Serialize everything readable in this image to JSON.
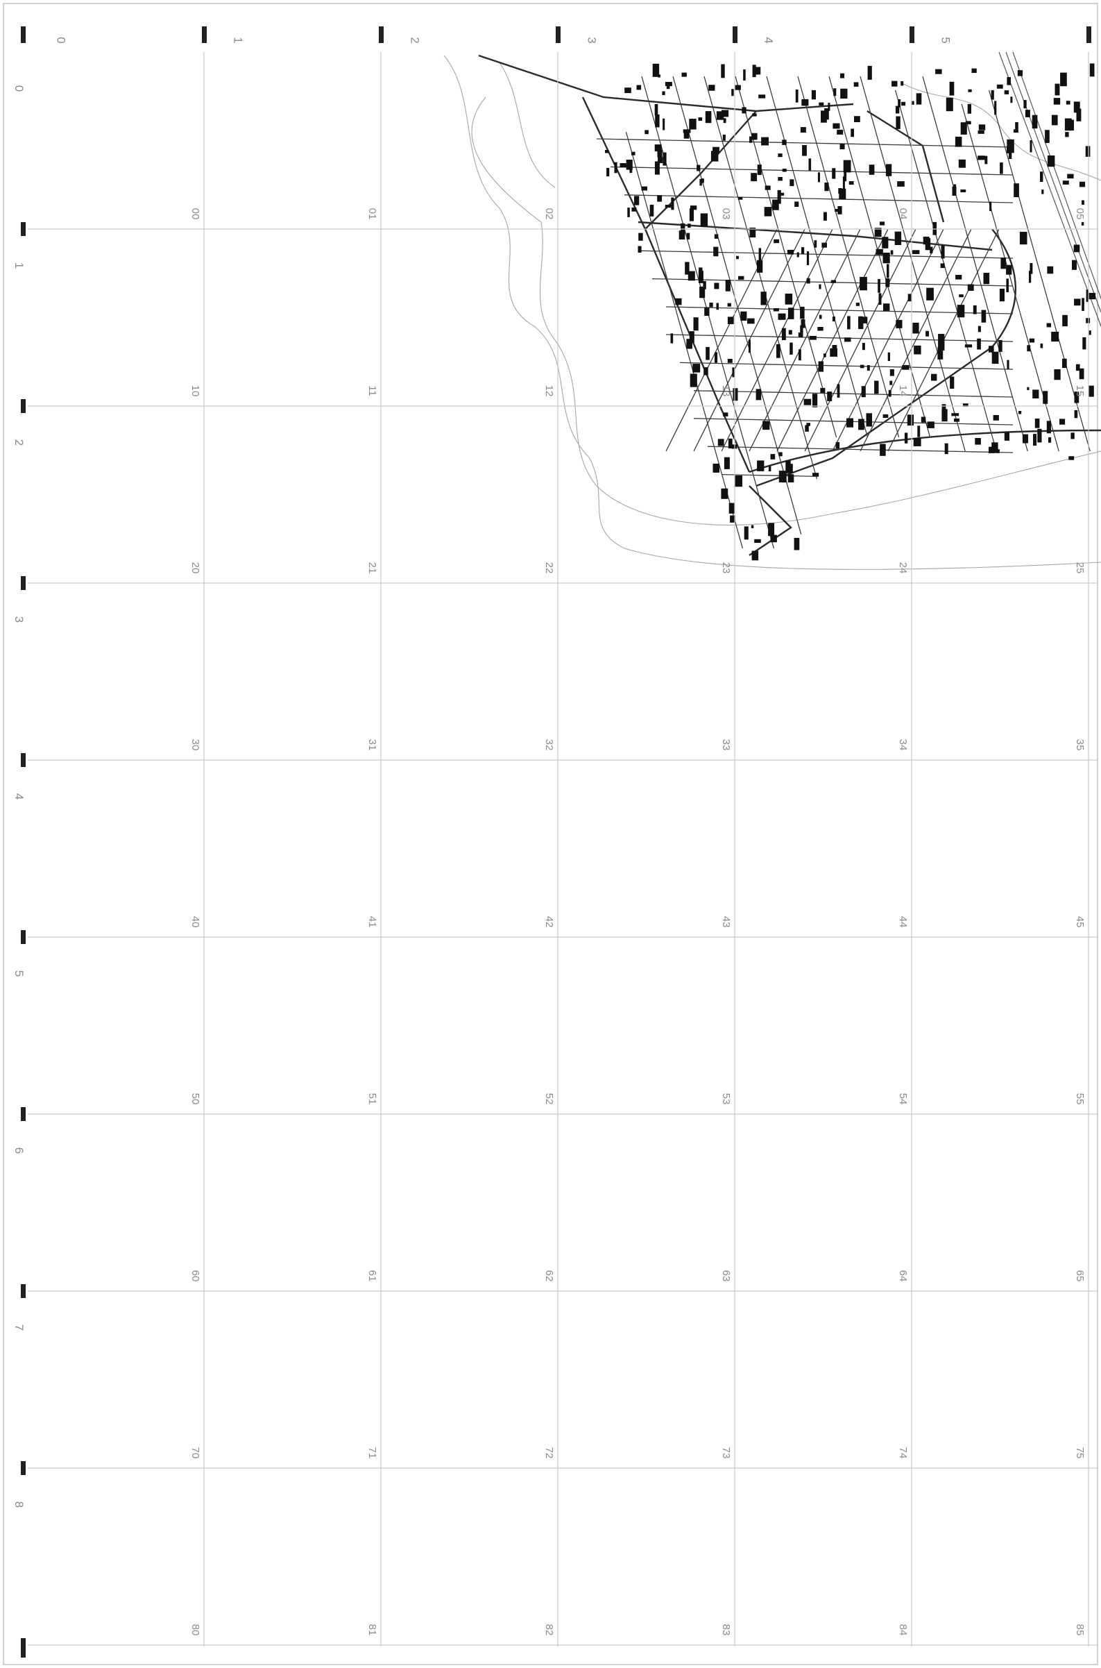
{
  "map_sheet": {
    "column_labels": [
      "0",
      "1",
      "2",
      "3",
      "4",
      "5"
    ],
    "row_labels": [
      "0",
      "1",
      "2",
      "3",
      "4",
      "5",
      "6",
      "7",
      "8"
    ],
    "cell_labels": [
      [
        "00",
        "01",
        "02",
        "03",
        "04",
        "05"
      ],
      [
        "10",
        "11",
        "12",
        "13",
        "14",
        "15"
      ],
      [
        "20",
        "21",
        "22",
        "23",
        "24",
        "25"
      ],
      [
        "30",
        "31",
        "32",
        "33",
        "34",
        "35"
      ],
      [
        "40",
        "41",
        "42",
        "43",
        "44",
        "45"
      ],
      [
        "50",
        "51",
        "52",
        "53",
        "54",
        "55"
      ],
      [
        "60",
        "61",
        "62",
        "63",
        "64",
        "65"
      ],
      [
        "70",
        "71",
        "72",
        "73",
        "74",
        "75"
      ],
      [
        "80",
        "81",
        "82",
        "83",
        "84",
        "85"
      ]
    ],
    "label_orientation": "rotated-90-clockwise",
    "grid_color": "#c9c9c9",
    "label_color": "#8a8a8a",
    "line_color": "#2a2a2a",
    "tick_marker_style": "short black vertical bars",
    "map_extent_cells": "02–05, 12–15, 22–25 (top-right area)",
    "map_features": [
      "road-network",
      "building-footprints",
      "coastline",
      "railway"
    ]
  }
}
